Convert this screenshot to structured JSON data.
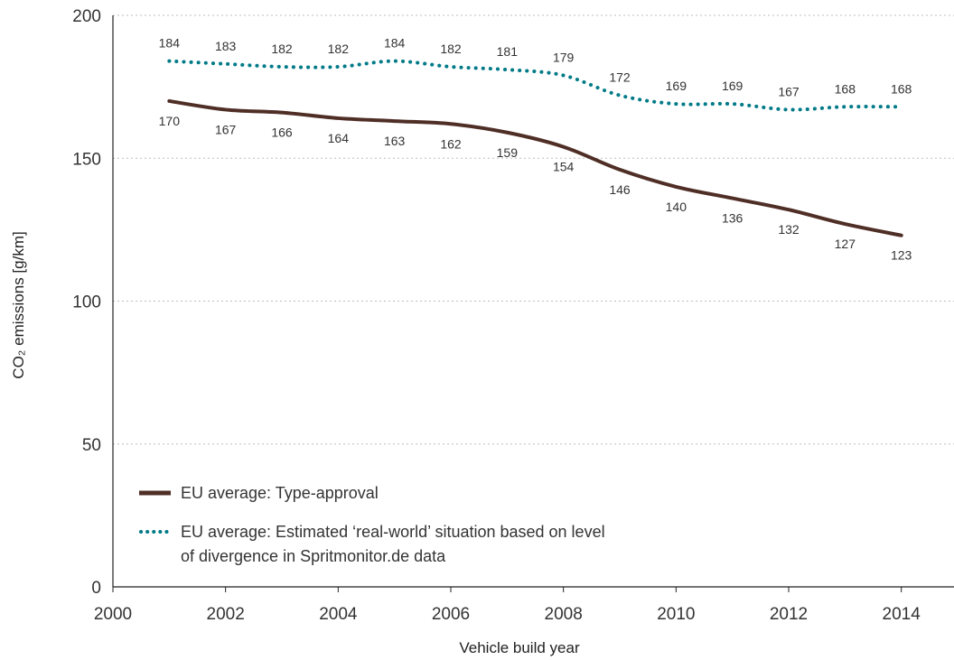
{
  "chart_data": {
    "type": "line",
    "xlabel": "Vehicle build year",
    "ylabel": "CO₂ emissions [g/km]",
    "xlim": [
      2000,
      2015
    ],
    "ylim": [
      0,
      200
    ],
    "x_ticks": [
      2000,
      2002,
      2004,
      2006,
      2008,
      2010,
      2012,
      2014
    ],
    "y_ticks": [
      0,
      50,
      100,
      150,
      200
    ],
    "grid": "horizontal dotted",
    "legend_position": "bottom-left",
    "x": [
      2001,
      2002,
      2003,
      2004,
      2005,
      2006,
      2007,
      2008,
      2009,
      2010,
      2011,
      2012,
      2013,
      2014
    ],
    "series": [
      {
        "name": "EU average: Type-approval",
        "legend_lines": [
          "EU average: Type-approval"
        ],
        "style": "solid",
        "color": "#4f2e26",
        "label_position": "below",
        "values": [
          170,
          167,
          166,
          164,
          163,
          162,
          159,
          154,
          146,
          140,
          136,
          132,
          127,
          123
        ]
      },
      {
        "name": "EU average: Estimated ‘real-world’ situation based on level of divergence in Spritmonitor.de data",
        "legend_lines": [
          "EU average: Estimated ‘real-world’ situation based on level",
          "of divergence in Spritmonitor.de data"
        ],
        "style": "dotted",
        "color": "#007a87",
        "label_position": "above",
        "values": [
          184,
          183,
          182,
          182,
          184,
          182,
          181,
          179,
          172,
          169,
          169,
          167,
          168,
          168
        ]
      }
    ]
  }
}
